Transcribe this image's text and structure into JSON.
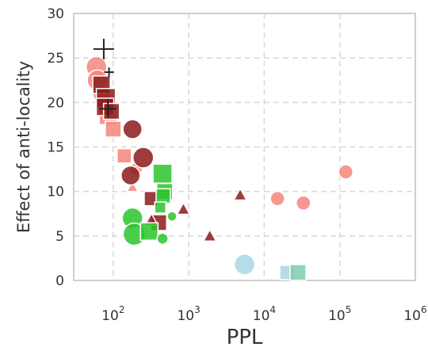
{
  "chart_data": {
    "type": "scatter",
    "title": "",
    "xlabel": "PPL",
    "ylabel": "Effect of anti-locality",
    "xscale": "log",
    "xlim": [
      30,
      1000000
    ],
    "ylim": [
      0,
      30
    ],
    "grid": true,
    "grid_style": "dashed",
    "x_ticks": [
      {
        "base": "10",
        "exp": "2",
        "value": 100
      },
      {
        "base": "10",
        "exp": "3",
        "value": 1000
      },
      {
        "base": "10",
        "exp": "4",
        "value": 10000
      },
      {
        "base": "10",
        "exp": "5",
        "value": 100000
      },
      {
        "base": "10",
        "exp": "6",
        "value": 1000000
      }
    ],
    "y_ticks": [
      0,
      5,
      10,
      15,
      20,
      25,
      30
    ],
    "series": [
      {
        "color": "#F7857B",
        "points": [
          {
            "x": 60,
            "y": 24,
            "marker": "circle",
            "size": 26
          },
          {
            "x": 62,
            "y": 22.5,
            "marker": "circle",
            "size": 26
          },
          {
            "x": 70,
            "y": 21,
            "marker": "circle",
            "size": 22
          },
          {
            "x": 95,
            "y": 19,
            "marker": "triangle",
            "size": 16
          },
          {
            "x": 85,
            "y": 18.5,
            "marker": "square",
            "size": 22
          },
          {
            "x": 100,
            "y": 17,
            "marker": "square",
            "size": 20
          },
          {
            "x": 140,
            "y": 14,
            "marker": "square",
            "size": 18
          },
          {
            "x": 200,
            "y": 12.5,
            "marker": "circle",
            "size": 16
          },
          {
            "x": 180,
            "y": 10.5,
            "marker": "triangle",
            "size": 14
          },
          {
            "x": 15000,
            "y": 9.2,
            "marker": "circle",
            "size": 18
          },
          {
            "x": 33000,
            "y": 8.7,
            "marker": "circle",
            "size": 18
          },
          {
            "x": 120000,
            "y": 12.2,
            "marker": "circle",
            "size": 18
          }
        ]
      },
      {
        "color": "#8B1A1A",
        "points": [
          {
            "x": 70,
            "y": 22,
            "marker": "square",
            "size": 22
          },
          {
            "x": 80,
            "y": 20.5,
            "marker": "square",
            "size": 24
          },
          {
            "x": 78,
            "y": 19.5,
            "marker": "square",
            "size": 22
          },
          {
            "x": 95,
            "y": 19,
            "marker": "square",
            "size": 20
          },
          {
            "x": 180,
            "y": 17,
            "marker": "circle",
            "size": 24
          },
          {
            "x": 250,
            "y": 13.8,
            "marker": "circle",
            "size": 26
          },
          {
            "x": 170,
            "y": 11.8,
            "marker": "circle",
            "size": 24
          },
          {
            "x": 320,
            "y": 9.2,
            "marker": "square",
            "size": 18
          },
          {
            "x": 400,
            "y": 6.5,
            "marker": "square",
            "size": 20
          },
          {
            "x": 320,
            "y": 6.8,
            "marker": "triangle",
            "size": 16
          },
          {
            "x": 850,
            "y": 8,
            "marker": "triangle",
            "size": 16
          },
          {
            "x": 1900,
            "y": 5,
            "marker": "triangle",
            "size": 16
          },
          {
            "x": 4800,
            "y": 9.6,
            "marker": "triangle",
            "size": 16
          }
        ]
      },
      {
        "color": "#2BC42B",
        "points": [
          {
            "x": 450,
            "y": 12,
            "marker": "square",
            "size": 24
          },
          {
            "x": 480,
            "y": 10,
            "marker": "square",
            "size": 20
          },
          {
            "x": 460,
            "y": 9.5,
            "marker": "square",
            "size": 18
          },
          {
            "x": 420,
            "y": 8.2,
            "marker": "square",
            "size": 14
          },
          {
            "x": 180,
            "y": 7,
            "marker": "circle",
            "size": 26
          },
          {
            "x": 190,
            "y": 5.2,
            "marker": "circle",
            "size": 28
          },
          {
            "x": 300,
            "y": 5.5,
            "marker": "square",
            "size": 22
          },
          {
            "x": 450,
            "y": 4.7,
            "marker": "circle",
            "size": 14
          },
          {
            "x": 600,
            "y": 7.2,
            "marker": "circle",
            "size": 12
          }
        ]
      },
      {
        "color": "#A9D6E5",
        "points": [
          {
            "x": 5500,
            "y": 1.8,
            "marker": "circle",
            "size": 26
          },
          {
            "x": 20000,
            "y": 0.9,
            "marker": "square",
            "size": 18
          }
        ]
      },
      {
        "color": "#7FCBB0",
        "points": [
          {
            "x": 28000,
            "y": 0.9,
            "marker": "square",
            "size": 20
          }
        ]
      },
      {
        "color": "#222222",
        "points": [
          {
            "x": 75,
            "y": 26,
            "marker": "plus",
            "size": 26
          },
          {
            "x": 85,
            "y": 19.3,
            "marker": "plus",
            "size": 22
          },
          {
            "x": 88,
            "y": 23.4,
            "marker": "plus",
            "size": 12
          }
        ]
      }
    ]
  }
}
